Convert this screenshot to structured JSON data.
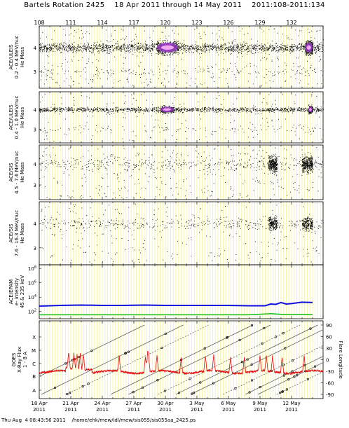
{
  "header": {
    "title": "Bartels Rotation 2425    18 Apr 2011 through 14 May 2011    2011:108-2011:134"
  },
  "footer": {
    "text": "Thu Aug  4 08:43:56 2011    /home/ehk/mew/idl/mew/sis055/sis055aa_2425.ps"
  },
  "top_day_labels": [
    "108",
    "111",
    "114",
    "117",
    "120",
    "123",
    "126",
    "129",
    "132"
  ],
  "bottom_date_labels": [
    {
      "day": "18 Apr",
      "year": "2011"
    },
    {
      "day": "21 Apr",
      "year": "2011"
    },
    {
      "day": "24 Apr",
      "year": "2011"
    },
    {
      "day": "27 Apr",
      "year": "2011"
    },
    {
      "day": "30 Apr",
      "year": "2011"
    },
    {
      "day": "3 May",
      "year": "2011"
    },
    {
      "day": "6 May",
      "year": "2011"
    },
    {
      "day": "9 May",
      "year": "2011"
    },
    {
      "day": "12 May",
      "year": "2011"
    }
  ],
  "colors": {
    "grid_yellow": "#f2f29a",
    "density_purple": "#9a3cc8",
    "density_pink": "#f2a8f2",
    "proton_blue": "#1010e0",
    "electron_green": "#10c010",
    "xray_red": "#e01010",
    "dots": "#000000"
  },
  "chart_data": [
    {
      "type": "scatter",
      "ylabel": [
        "ACE/ULEIS",
        "0.2 - 0.4 MeV/nuc",
        "He Mass"
      ],
      "yticks": [
        "4",
        "3"
      ],
      "description_points": "He mass track near 4, dense band with bright core 2011:119-121 and 2011:133-134, secondary cluster near 3",
      "mass_track": 4.0,
      "mass_secondary": 3.0,
      "bright_intervals_doy": [
        [
          119.2,
          121.2
        ],
        [
          133.3,
          134.0
        ]
      ]
    },
    {
      "type": "scatter",
      "ylabel": [
        "ACE/ULEIS",
        "0.4 - 1.0 MeV/nuc",
        "He Mass"
      ],
      "yticks": [
        "4",
        "3"
      ],
      "mass_track": 4.0,
      "mass_secondary": 3.0,
      "bright_intervals_doy": [
        [
          119.5,
          120.8
        ],
        [
          133.6,
          134.0
        ]
      ]
    },
    {
      "type": "scatter",
      "ylabel": [
        "ACE/SIS",
        "4.5 - 7.6 MeV/nuc",
        "He Mass"
      ],
      "yticks": [
        "4",
        "3"
      ],
      "mass_track": 4.0,
      "dense_intervals_doy": [
        [
          129.8,
          130.6
        ],
        [
          133.0,
          134.0
        ]
      ]
    },
    {
      "type": "scatter",
      "ylabel": [
        "ACE/SIS",
        "7.6 - 16.3 MeV/nuc",
        "He Mass"
      ],
      "yticks": [
        "4",
        "3"
      ],
      "mass_track": 4.0,
      "dense_intervals_doy": [
        [
          129.8,
          130.6
        ],
        [
          133.0,
          134.0
        ]
      ]
    },
    {
      "type": "line",
      "ylabel": [
        "ACE/EPAM",
        "e- intensity",
        "45 & 235 keV"
      ],
      "yticks": [
        "10^8",
        "10^6",
        "10^4",
        "10^2"
      ],
      "y_log_range": [
        1,
        8.5
      ],
      "series": [
        {
          "name": "45 keV",
          "x_doy": [
            108.0,
            110.0,
            112.0,
            114.0,
            116.0,
            118.0,
            120.0,
            122.0,
            124.0,
            126.0,
            128.0,
            129.5,
            130.0,
            130.5,
            131.0,
            131.5,
            132.0,
            132.5,
            133.0,
            134.0
          ],
          "log_values": [
            2.75,
            2.85,
            2.9,
            2.85,
            2.85,
            2.9,
            2.85,
            2.85,
            2.85,
            2.85,
            2.8,
            2.8,
            3.05,
            3.0,
            3.25,
            3.05,
            3.1,
            3.2,
            3.3,
            3.25
          ]
        },
        {
          "name": "235 keV",
          "x_doy": [
            108.0,
            112.0,
            116.0,
            120.0,
            124.0,
            128.0,
            130.0,
            131.0,
            134.0
          ],
          "log_values": [
            1.55,
            1.55,
            1.55,
            1.55,
            1.55,
            1.55,
            1.7,
            1.6,
            1.6
          ]
        }
      ]
    },
    {
      "type": "line",
      "ylabel": [
        "GOES",
        "X-Ray Flux",
        "1 - 8 A"
      ],
      "yticks_left": [
        "X",
        "M",
        "C",
        "B",
        "A"
      ],
      "yticks_right": [
        "90",
        "60",
        "30",
        "0",
        "-30",
        "-60",
        "-90"
      ],
      "y2label": "Flare Longitude",
      "xray_baseline_level": "B to C",
      "flare_peaks_doy": [
        110.8,
        111.3,
        111.6,
        111.9,
        112.2,
        115.6,
        118.1,
        118.3,
        118.4,
        119.2,
        121.5,
        123.8,
        124.6,
        126.2,
        127.5,
        129.0,
        129.6,
        130.2,
        131.1,
        133.2
      ]
    }
  ]
}
